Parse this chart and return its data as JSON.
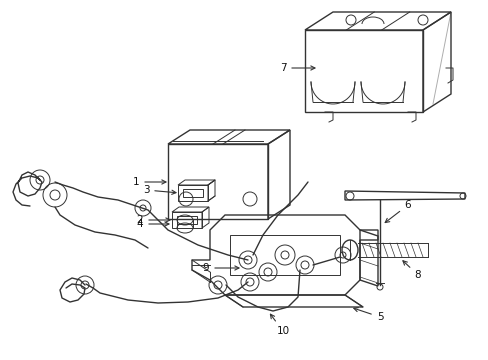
{
  "background_color": "#ffffff",
  "line_color": "#333333",
  "label_color": "#111111",
  "figsize": [
    4.89,
    3.6
  ],
  "dpi": 100,
  "lw_main": 1.0,
  "lw_thin": 0.7,
  "lw_thick": 1.4,
  "fontsize": 7.5
}
